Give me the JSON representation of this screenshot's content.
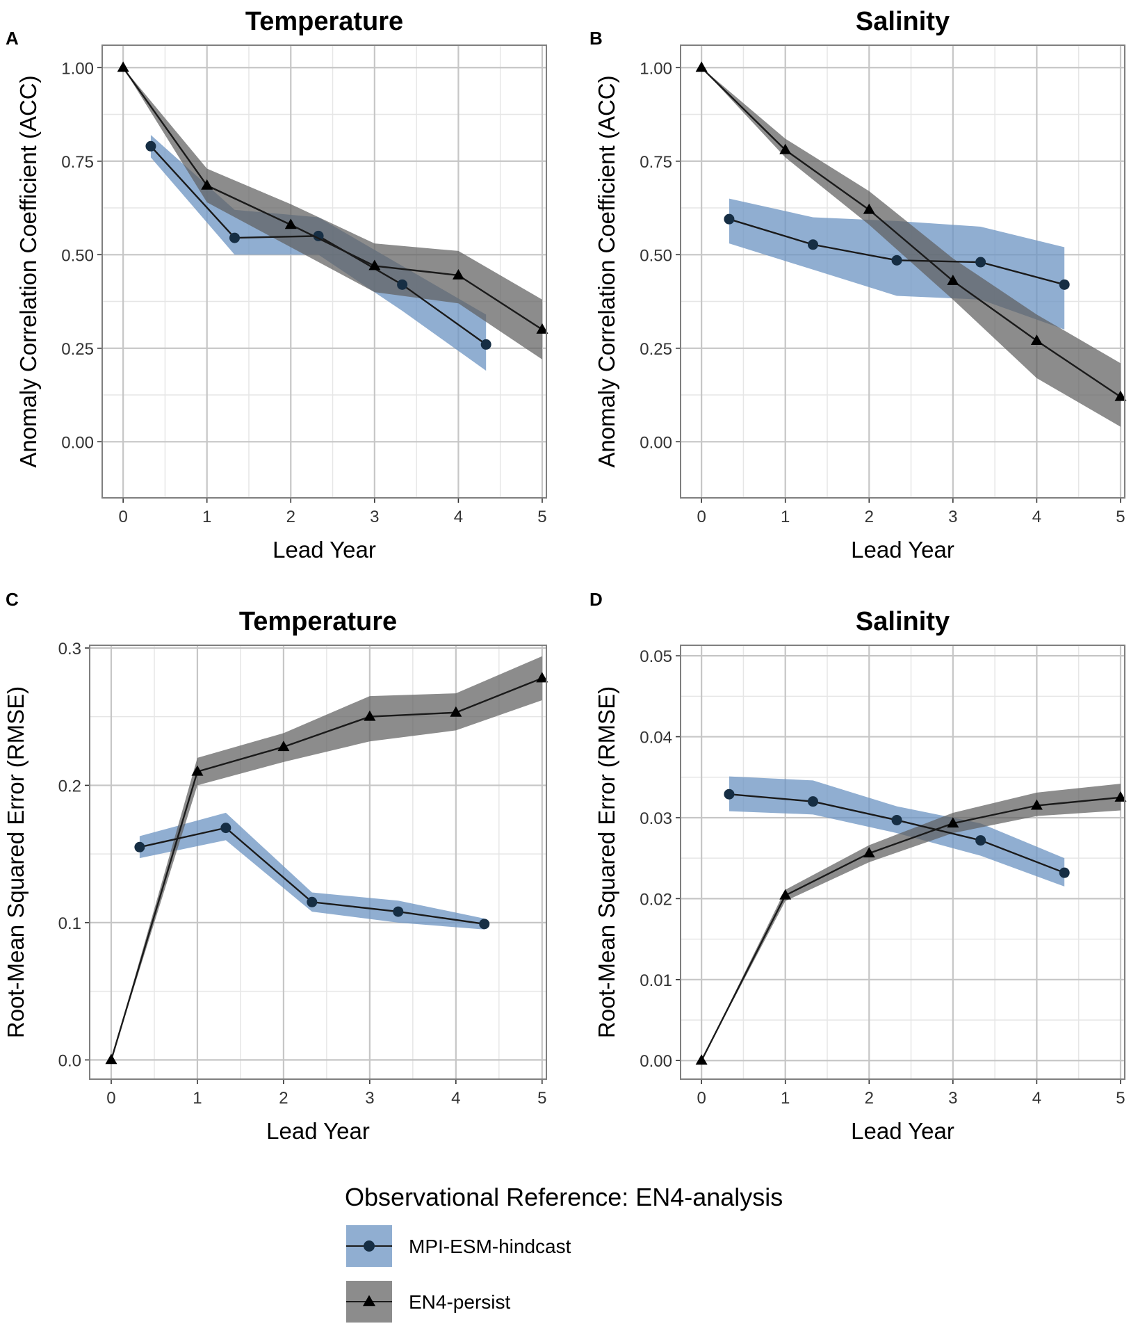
{
  "legend": {
    "title": "Observational Reference: EN4-analysis",
    "items": [
      {
        "label": "MPI-ESM-hindcast",
        "marker": "circle",
        "fill": "#6b93c2"
      },
      {
        "label": "EN4-persist",
        "marker": "triangle",
        "fill": "#5f5f5f"
      }
    ]
  },
  "colors": {
    "hindcast_band": "#6b93c2",
    "persist_band": "#5f5f5f",
    "line": "#1a1a1a",
    "hindcast_marker": "#162e44",
    "grid_major": "#c6c6c6",
    "grid_minor": "#e6e6e6",
    "panel_border": "#7f7f7f"
  },
  "chart_data": [
    {
      "id": "A",
      "tag": "A",
      "type": "line",
      "title": "Temperature",
      "xlabel": "Lead Year",
      "ylabel": "Anomaly Correlation Coefficient (ACC)",
      "xlim": [
        -0.25,
        5.05
      ],
      "ylim": [
        -0.15,
        1.06
      ],
      "xticks": [
        0,
        1,
        2,
        3,
        4,
        5
      ],
      "yticks": [
        0.0,
        0.25,
        0.5,
        0.75,
        1.0
      ],
      "ytick_labels": [
        "0.00",
        "0.25",
        "0.50",
        "0.75",
        "1.00"
      ],
      "series": [
        {
          "name": "MPI-ESM-hindcast",
          "marker": "circle",
          "x": [
            0.33,
            1.33,
            2.33,
            3.33,
            4.33
          ],
          "values": [
            0.79,
            0.545,
            0.55,
            0.42,
            0.26
          ],
          "lower": [
            0.76,
            0.5,
            0.5,
            0.35,
            0.19
          ],
          "upper": [
            0.82,
            0.62,
            0.6,
            0.47,
            0.34
          ]
        },
        {
          "name": "EN4-persist",
          "marker": "triangle",
          "x": [
            0,
            1,
            2,
            3,
            4,
            5
          ],
          "values": [
            1.0,
            0.685,
            0.58,
            0.47,
            0.445,
            0.3
          ],
          "lower": [
            1.0,
            0.64,
            0.52,
            0.4,
            0.37,
            0.22
          ],
          "upper": [
            1.0,
            0.73,
            0.635,
            0.53,
            0.51,
            0.38
          ]
        }
      ]
    },
    {
      "id": "B",
      "tag": "B",
      "type": "line",
      "title": "Salinity",
      "xlabel": "Lead Year",
      "ylabel": "Anomaly Correlation Coefficient (ACC)",
      "xlim": [
        -0.25,
        5.05
      ],
      "ylim": [
        -0.15,
        1.06
      ],
      "xticks": [
        0,
        1,
        2,
        3,
        4,
        5
      ],
      "yticks": [
        0.0,
        0.25,
        0.5,
        0.75,
        1.0
      ],
      "ytick_labels": [
        "0.00",
        "0.25",
        "0.50",
        "0.75",
        "1.00"
      ],
      "series": [
        {
          "name": "MPI-ESM-hindcast",
          "marker": "circle",
          "x": [
            0.33,
            1.33,
            2.33,
            3.33,
            4.33
          ],
          "values": [
            0.595,
            0.527,
            0.485,
            0.48,
            0.42
          ],
          "lower": [
            0.53,
            0.46,
            0.39,
            0.38,
            0.3
          ],
          "upper": [
            0.65,
            0.6,
            0.59,
            0.575,
            0.52
          ]
        },
        {
          "name": "EN4-persist",
          "marker": "triangle",
          "x": [
            0,
            1,
            2,
            3,
            4,
            5
          ],
          "values": [
            1.0,
            0.78,
            0.62,
            0.43,
            0.27,
            0.12
          ],
          "lower": [
            1.0,
            0.76,
            0.58,
            0.38,
            0.17,
            0.04
          ],
          "upper": [
            1.0,
            0.81,
            0.67,
            0.49,
            0.34,
            0.21
          ]
        }
      ]
    },
    {
      "id": "C",
      "tag": "C",
      "type": "line",
      "title": "Temperature",
      "xlabel": "Lead Year",
      "ylabel": "Root-Mean Squared Error (RMSE)",
      "xlim": [
        -0.25,
        5.05
      ],
      "ylim": [
        -0.014,
        0.302
      ],
      "xticks": [
        0,
        1,
        2,
        3,
        4,
        5
      ],
      "yticks": [
        0.0,
        0.1,
        0.2,
        0.3
      ],
      "ytick_labels": [
        "0.0",
        "0.1",
        "0.2",
        "0.3"
      ],
      "series": [
        {
          "name": "MPI-ESM-hindcast",
          "marker": "circle",
          "x": [
            0.33,
            1.33,
            2.33,
            3.33,
            4.33
          ],
          "values": [
            0.155,
            0.169,
            0.115,
            0.108,
            0.099
          ],
          "lower": [
            0.147,
            0.16,
            0.108,
            0.1,
            0.095
          ],
          "upper": [
            0.163,
            0.18,
            0.122,
            0.116,
            0.103
          ]
        },
        {
          "name": "EN4-persist",
          "marker": "triangle",
          "x": [
            0,
            1,
            2,
            3,
            4,
            5
          ],
          "values": [
            0.0,
            0.21,
            0.228,
            0.25,
            0.253,
            0.278
          ],
          "lower": [
            0.0,
            0.2,
            0.217,
            0.232,
            0.24,
            0.262
          ],
          "upper": [
            0.0,
            0.22,
            0.238,
            0.265,
            0.267,
            0.294
          ]
        }
      ]
    },
    {
      "id": "D",
      "tag": "D",
      "type": "line",
      "title": "Salinity",
      "xlabel": "Lead Year",
      "ylabel": "Root-Mean Squared Error (RMSE)",
      "xlim": [
        -0.25,
        5.05
      ],
      "ylim": [
        -0.0023,
        0.0513
      ],
      "xticks": [
        0,
        1,
        2,
        3,
        4,
        5
      ],
      "yticks": [
        0.0,
        0.01,
        0.02,
        0.03,
        0.04,
        0.05
      ],
      "ytick_labels": [
        "0.00",
        "0.01",
        "0.02",
        "0.03",
        "0.04",
        "0.05"
      ],
      "series": [
        {
          "name": "MPI-ESM-hindcast",
          "marker": "circle",
          "x": [
            0.33,
            1.33,
            2.33,
            3.33,
            4.33
          ],
          "values": [
            0.0329,
            0.032,
            0.0297,
            0.0272,
            0.0232
          ],
          "lower": [
            0.0308,
            0.0304,
            0.0281,
            0.0253,
            0.0215
          ],
          "upper": [
            0.0351,
            0.0346,
            0.0314,
            0.0293,
            0.025
          ]
        },
        {
          "name": "EN4-persist",
          "marker": "triangle",
          "x": [
            0,
            1,
            2,
            3,
            4,
            5
          ],
          "values": [
            0.0,
            0.0204,
            0.0256,
            0.0293,
            0.0315,
            0.0325
          ],
          "lower": [
            0.0,
            0.0197,
            0.0245,
            0.0281,
            0.0302,
            0.0309
          ],
          "upper": [
            0.0,
            0.0211,
            0.0266,
            0.0306,
            0.0331,
            0.0342
          ]
        }
      ]
    }
  ]
}
